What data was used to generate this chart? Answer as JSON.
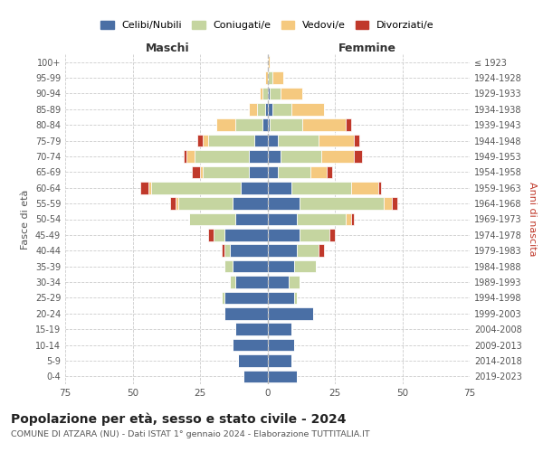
{
  "age_groups": [
    "100+",
    "95-99",
    "90-94",
    "85-89",
    "80-84",
    "75-79",
    "70-74",
    "65-69",
    "60-64",
    "55-59",
    "50-54",
    "45-49",
    "40-44",
    "35-39",
    "30-34",
    "25-29",
    "20-24",
    "15-19",
    "10-14",
    "5-9",
    "0-4"
  ],
  "birth_years": [
    "≤ 1923",
    "1924-1928",
    "1929-1933",
    "1934-1938",
    "1939-1943",
    "1944-1948",
    "1949-1953",
    "1954-1958",
    "1959-1963",
    "1964-1968",
    "1969-1973",
    "1974-1978",
    "1979-1983",
    "1984-1988",
    "1989-1993",
    "1994-1998",
    "1999-2003",
    "2004-2008",
    "2009-2013",
    "2014-2018",
    "2019-2023"
  ],
  "males": {
    "celibe": [
      0,
      0,
      0,
      1,
      2,
      5,
      7,
      7,
      10,
      13,
      12,
      16,
      14,
      13,
      12,
      16,
      16,
      12,
      13,
      11,
      9
    ],
    "coniugato": [
      0,
      0,
      2,
      3,
      10,
      17,
      20,
      17,
      33,
      20,
      17,
      4,
      2,
      3,
      2,
      1,
      0,
      0,
      0,
      0,
      0
    ],
    "vedovo": [
      0,
      1,
      1,
      3,
      7,
      2,
      3,
      1,
      1,
      1,
      0,
      0,
      0,
      0,
      0,
      0,
      0,
      0,
      0,
      0,
      0
    ],
    "divorziato": [
      0,
      0,
      0,
      0,
      0,
      2,
      1,
      3,
      3,
      2,
      0,
      2,
      1,
      0,
      0,
      0,
      0,
      0,
      0,
      0,
      0
    ]
  },
  "females": {
    "nubile": [
      0,
      0,
      1,
      2,
      1,
      4,
      5,
      4,
      9,
      12,
      11,
      12,
      11,
      10,
      8,
      10,
      17,
      9,
      10,
      9,
      11
    ],
    "coniugata": [
      0,
      2,
      4,
      7,
      12,
      15,
      15,
      12,
      22,
      31,
      18,
      11,
      8,
      8,
      4,
      1,
      0,
      0,
      0,
      0,
      0
    ],
    "vedova": [
      1,
      4,
      8,
      12,
      16,
      13,
      12,
      6,
      10,
      3,
      2,
      0,
      0,
      0,
      0,
      0,
      0,
      0,
      0,
      0,
      0
    ],
    "divorziata": [
      0,
      0,
      0,
      0,
      2,
      2,
      3,
      2,
      1,
      2,
      1,
      2,
      2,
      0,
      0,
      0,
      0,
      0,
      0,
      0,
      0
    ]
  },
  "color_celibe": "#4a6fa5",
  "color_coniugato": "#c5d5a0",
  "color_vedovo": "#f5c97f",
  "color_divorziato": "#c0392b",
  "xlim": 75,
  "title": "Popolazione per età, sesso e stato civile - 2024",
  "subtitle": "COMUNE DI ATZARA (NU) - Dati ISTAT 1° gennaio 2024 - Elaborazione TUTTITALIA.IT",
  "ylabel_left": "Fasce di età",
  "ylabel_right": "Anni di nascita",
  "xlabel_males": "Maschi",
  "xlabel_females": "Femmine",
  "legend_labels": [
    "Celibi/Nubili",
    "Coniugati/e",
    "Vedovi/e",
    "Divorziati/e"
  ]
}
